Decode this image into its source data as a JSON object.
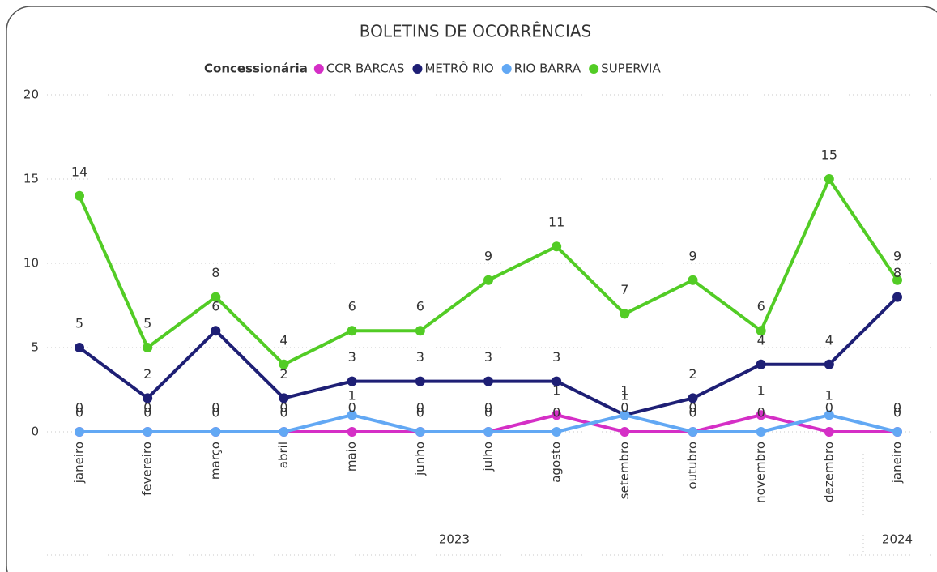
{
  "chart_data": {
    "type": "line",
    "title": "BOLETINS DE OCORRÊNCIAS",
    "legend_title": "Concessionária",
    "categories": [
      "janeiro",
      "fevereiro",
      "março",
      "abril",
      "maio",
      "junho",
      "julho",
      "agosto",
      "setembro",
      "outubro",
      "novembro",
      "dezembro",
      "janeiro"
    ],
    "years": [
      "2023",
      "2023",
      "2023",
      "2023",
      "2023",
      "2023",
      "2023",
      "2023",
      "2023",
      "2023",
      "2023",
      "2023",
      "2024"
    ],
    "series": [
      {
        "name": "CCR BARCAS",
        "color": "#d52fc6",
        "values": [
          0,
          0,
          0,
          0,
          0,
          0,
          0,
          1,
          0,
          0,
          1,
          0,
          0
        ]
      },
      {
        "name": "METRÔ RIO",
        "color": "#1e1f75",
        "values": [
          5,
          2,
          6,
          2,
          3,
          3,
          3,
          3,
          1,
          2,
          4,
          4,
          8
        ]
      },
      {
        "name": "RIO BARRA",
        "color": "#62a8f4",
        "values": [
          0,
          0,
          0,
          0,
          1,
          0,
          0,
          0,
          1,
          0,
          0,
          1,
          0
        ]
      },
      {
        "name": "SUPERVIA",
        "color": "#52cc25",
        "values": [
          14,
          5,
          8,
          4,
          6,
          6,
          9,
          11,
          7,
          9,
          6,
          15,
          9
        ]
      }
    ],
    "ylim": [
      0,
      20
    ],
    "yticks": [
      0,
      5,
      10,
      15,
      20
    ],
    "grid": true
  }
}
